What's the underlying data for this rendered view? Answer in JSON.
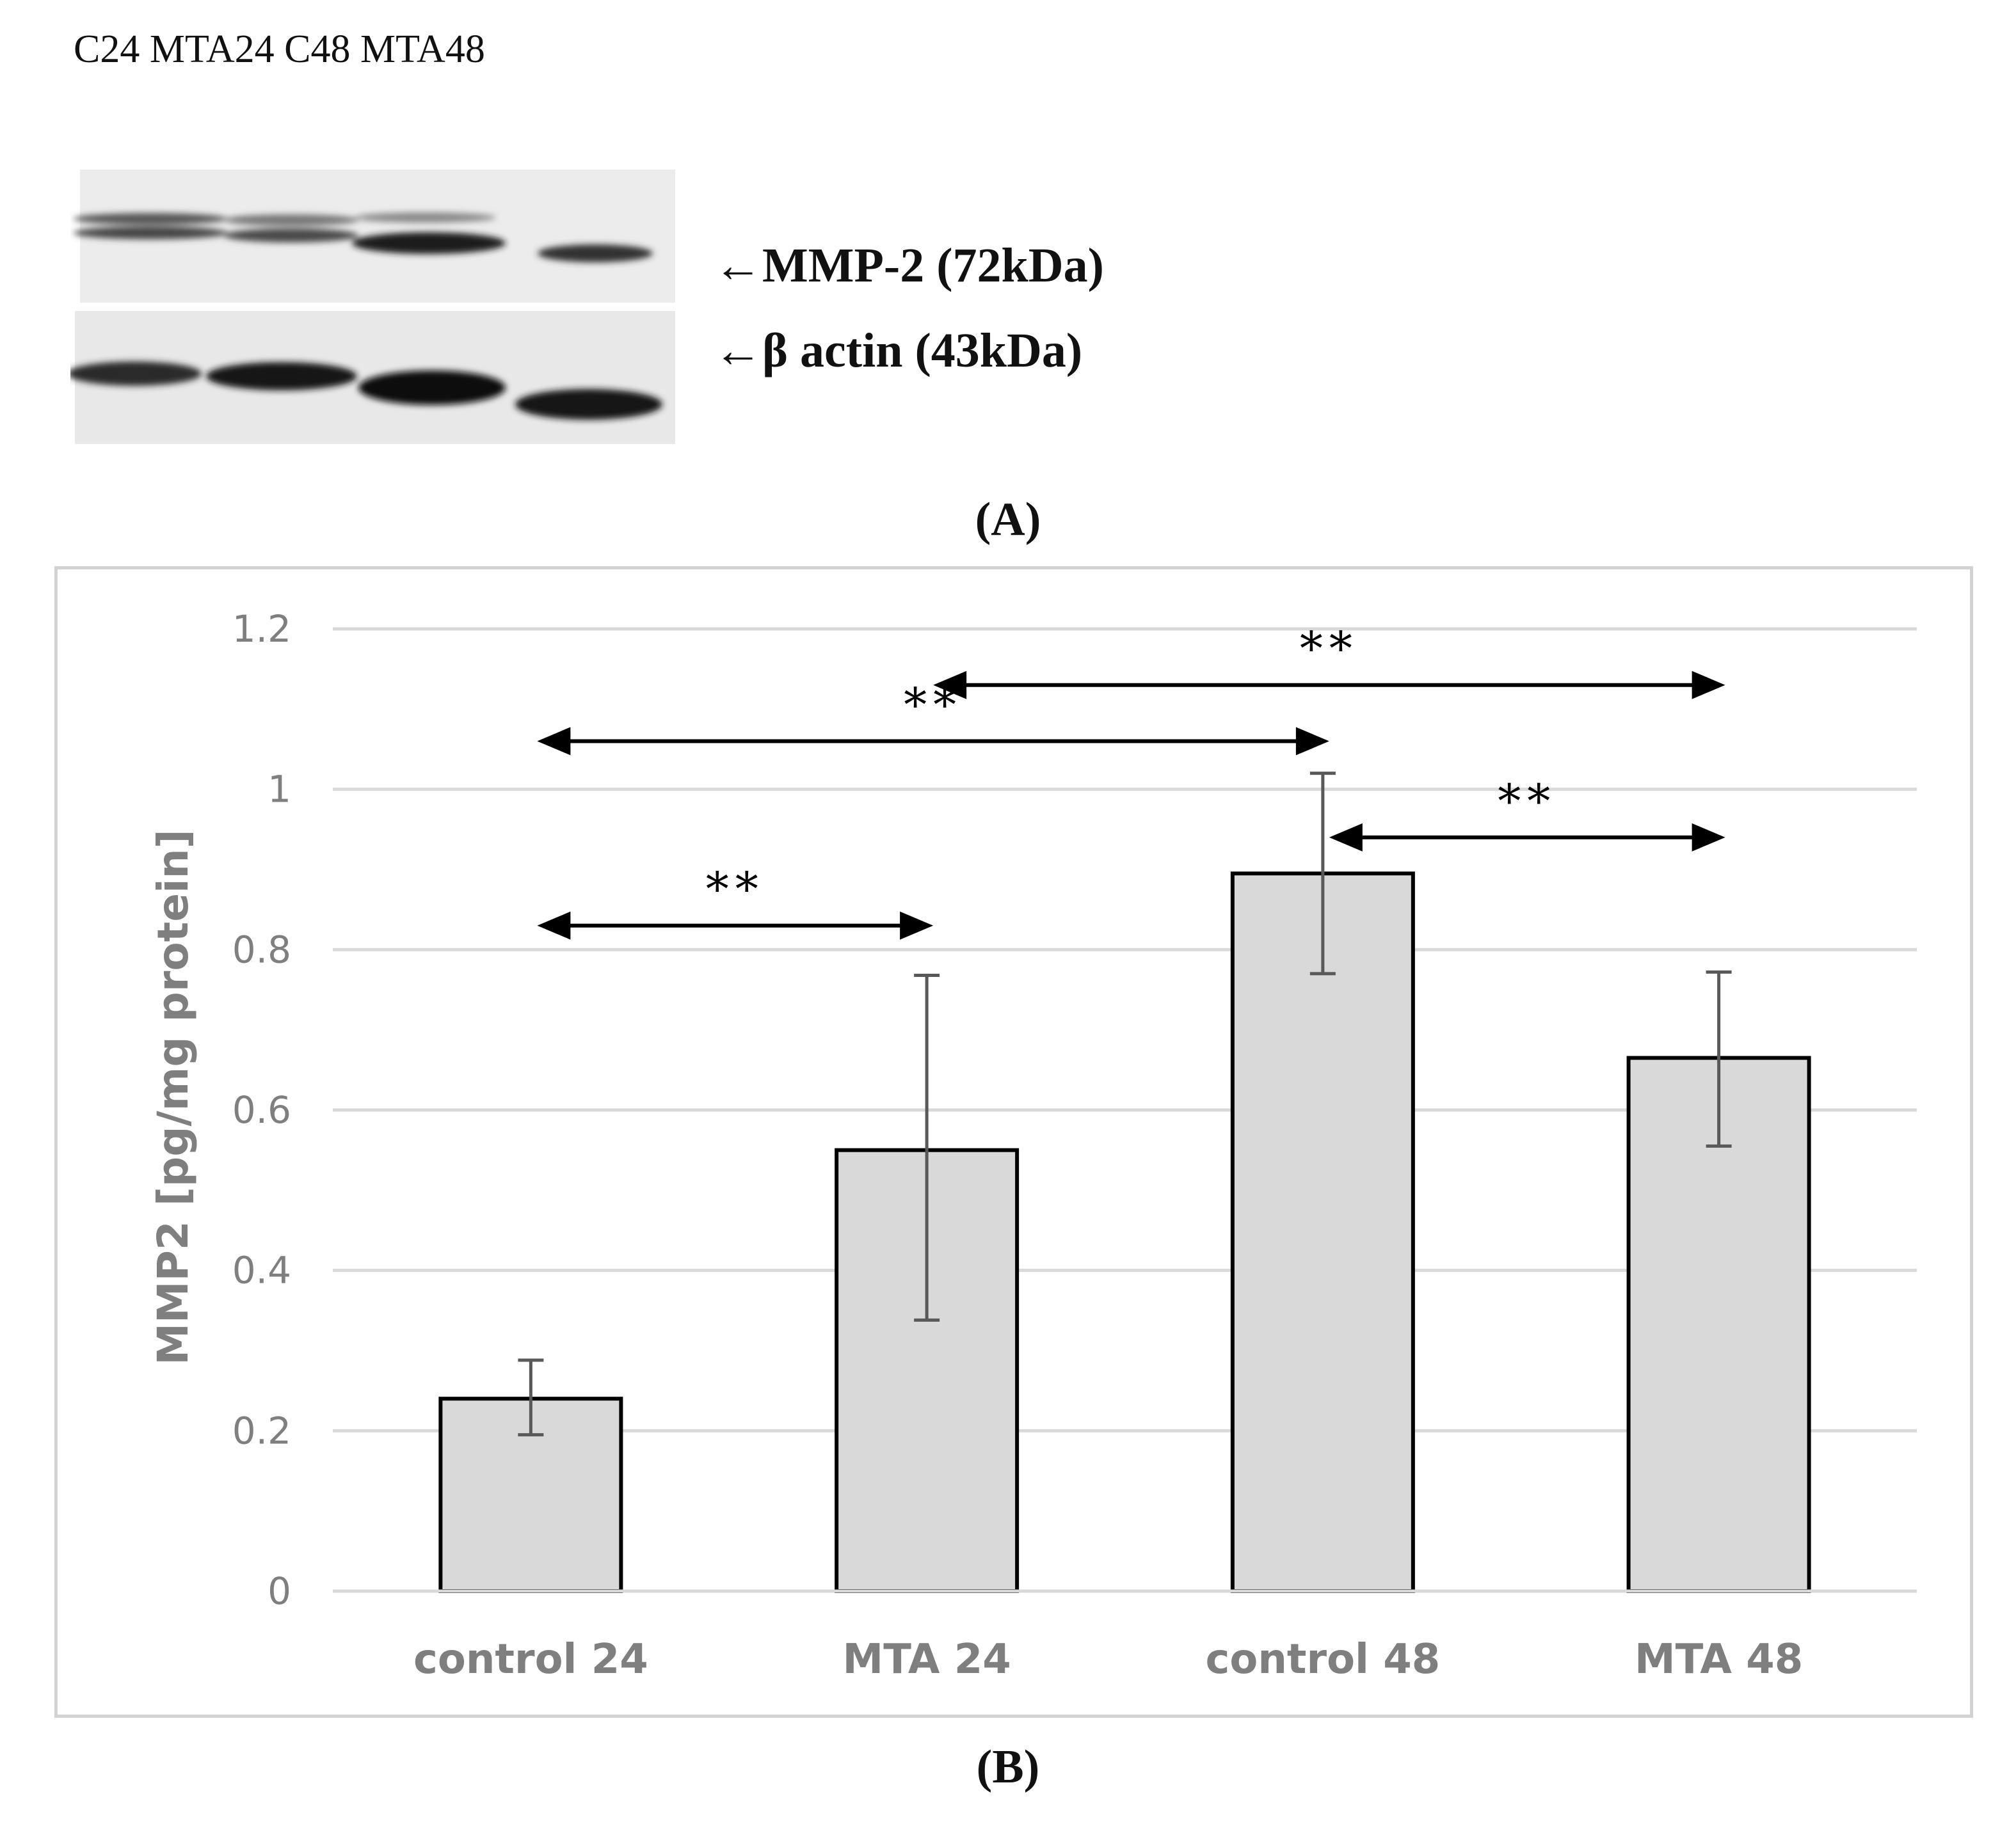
{
  "panel_a": {
    "lane_labels": "C24 MTA24 C48 MTA48",
    "band_labels": [
      "←MMP-2 (72kDa)",
      "←β actin (43kDa)"
    ],
    "caption": "(A)"
  },
  "panel_b": {
    "caption": "(B)"
  },
  "colors": {
    "bar_fill": "#d9d9d9",
    "bar_stroke": "#000000",
    "gridline": "#d9d9d9",
    "axis_text": "#7f7f7f",
    "error_bar": "#595959",
    "annotation": "#000000"
  },
  "chart_data": {
    "type": "bar",
    "title": "",
    "xlabel": "",
    "ylabel": "MMP2 [pg/mg protein]",
    "ylim": [
      0,
      1.2
    ],
    "yticks": [
      0,
      0.2,
      0.4,
      0.6,
      0.8,
      1,
      1.2
    ],
    "ytick_labels": [
      "0",
      "0.2",
      "0.4",
      "0.6",
      "0.8",
      "1",
      "1.2"
    ],
    "grid": true,
    "categories": [
      "control 24",
      "MTA 24",
      "control 48",
      "MTA 48"
    ],
    "values": [
      0.24,
      0.55,
      0.895,
      0.665
    ],
    "error_low": [
      0.195,
      0.338,
      0.77,
      0.555
    ],
    "error_high": [
      0.288,
      0.768,
      1.02,
      0.772
    ],
    "significance": [
      {
        "from": 0,
        "to": 1,
        "level": 0.83,
        "label": "**"
      },
      {
        "from": 0,
        "to": 2,
        "level": 1.06,
        "label": "**"
      },
      {
        "from": 1,
        "to": 3,
        "level": 1.13,
        "label": "**"
      },
      {
        "from": 2,
        "to": 3,
        "level": 0.94,
        "label": "**"
      }
    ]
  }
}
